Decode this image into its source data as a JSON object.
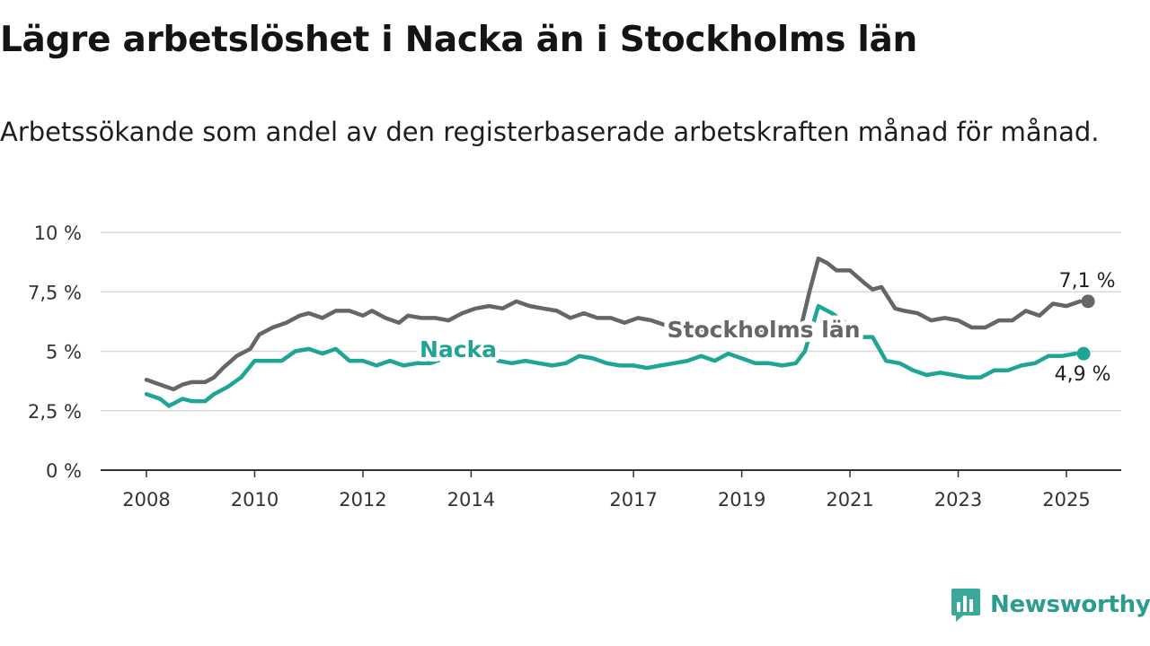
{
  "header": {
    "title": "Lägre arbetslöshet i Nacka än i Stockholms län",
    "subtitle": "Arbetssökande som andel av den registerbaserade arbetskraften månad för månad."
  },
  "brand": {
    "name": "Newsworthy",
    "icon": "chart-bars-icon",
    "color": "#3aa89a"
  },
  "chart_data": {
    "type": "line",
    "title": "Lägre arbetslöshet i Nacka än i Stockholms län",
    "subtitle": "Arbetssökande som andel av den registerbaserade arbetskraften månad för månad.",
    "x_ticks": [
      "2008",
      "2010",
      "2012",
      "2014",
      "2017",
      "2019",
      "2021",
      "2023",
      "2025"
    ],
    "y_ticks": [
      "0 %",
      "2,5 %",
      "5 %",
      "7,5 %",
      "10 %"
    ],
    "ylim": [
      0,
      10
    ],
    "grid": true,
    "series": [
      {
        "name": "Stockholms län",
        "color": "#666666",
        "end_label": "7,1 %",
        "points": [
          [
            "2008-01",
            3.8
          ],
          [
            "2008-04",
            3.6
          ],
          [
            "2008-07",
            3.4
          ],
          [
            "2008-09",
            3.6
          ],
          [
            "2008-11",
            3.7
          ],
          [
            "2009-02",
            3.7
          ],
          [
            "2009-04",
            3.9
          ],
          [
            "2009-06",
            4.3
          ],
          [
            "2009-09",
            4.8
          ],
          [
            "2009-12",
            5.1
          ],
          [
            "2010-02",
            5.7
          ],
          [
            "2010-05",
            6.0
          ],
          [
            "2010-08",
            6.2
          ],
          [
            "2010-11",
            6.5
          ],
          [
            "2011-01",
            6.6
          ],
          [
            "2011-04",
            6.4
          ],
          [
            "2011-07",
            6.7
          ],
          [
            "2011-10",
            6.7
          ],
          [
            "2012-01",
            6.5
          ],
          [
            "2012-03",
            6.7
          ],
          [
            "2012-06",
            6.4
          ],
          [
            "2012-09",
            6.2
          ],
          [
            "2012-11",
            6.5
          ],
          [
            "2013-02",
            6.4
          ],
          [
            "2013-05",
            6.4
          ],
          [
            "2013-08",
            6.3
          ],
          [
            "2013-11",
            6.6
          ],
          [
            "2014-02",
            6.8
          ],
          [
            "2014-05",
            6.9
          ],
          [
            "2014-08",
            6.8
          ],
          [
            "2014-11",
            7.1
          ],
          [
            "2015-02",
            6.9
          ],
          [
            "2015-05",
            6.8
          ],
          [
            "2015-08",
            6.7
          ],
          [
            "2015-11",
            6.4
          ],
          [
            "2016-02",
            6.6
          ],
          [
            "2016-05",
            6.4
          ],
          [
            "2016-08",
            6.4
          ],
          [
            "2016-11",
            6.2
          ],
          [
            "2017-02",
            6.4
          ],
          [
            "2017-05",
            6.3
          ],
          [
            "2017-08",
            6.1
          ],
          [
            "2017-11",
            6.1
          ],
          [
            "2018-02",
            6.0
          ],
          [
            "2018-05",
            5.9
          ],
          [
            "2018-08",
            6.0
          ],
          [
            "2018-11",
            5.9
          ],
          [
            "2019-02",
            5.9
          ],
          [
            "2019-05",
            5.9
          ],
          [
            "2019-08",
            5.9
          ],
          [
            "2019-11",
            5.8
          ],
          [
            "2020-02",
            5.9
          ],
          [
            "2020-04",
            7.5
          ],
          [
            "2020-06",
            8.9
          ],
          [
            "2020-08",
            8.7
          ],
          [
            "2020-10",
            8.4
          ],
          [
            "2021-01",
            8.4
          ],
          [
            "2021-04",
            7.9
          ],
          [
            "2021-06",
            7.6
          ],
          [
            "2021-08",
            7.7
          ],
          [
            "2021-11",
            6.8
          ],
          [
            "2022-01",
            6.7
          ],
          [
            "2022-04",
            6.6
          ],
          [
            "2022-07",
            6.3
          ],
          [
            "2022-10",
            6.4
          ],
          [
            "2023-01",
            6.3
          ],
          [
            "2023-04",
            6.0
          ],
          [
            "2023-07",
            6.0
          ],
          [
            "2023-10",
            6.3
          ],
          [
            "2024-01",
            6.3
          ],
          [
            "2024-04",
            6.7
          ],
          [
            "2024-07",
            6.5
          ],
          [
            "2024-10",
            7.0
          ],
          [
            "2025-01",
            6.9
          ],
          [
            "2025-04",
            7.1
          ]
        ]
      },
      {
        "name": "Nacka",
        "color": "#1fa595",
        "end_label": "4,9 %",
        "points": [
          [
            "2008-01",
            3.2
          ],
          [
            "2008-04",
            3.0
          ],
          [
            "2008-06",
            2.7
          ],
          [
            "2008-09",
            3.0
          ],
          [
            "2008-11",
            2.9
          ],
          [
            "2009-02",
            2.9
          ],
          [
            "2009-04",
            3.2
          ],
          [
            "2009-07",
            3.5
          ],
          [
            "2009-10",
            3.9
          ],
          [
            "2010-01",
            4.6
          ],
          [
            "2010-04",
            4.6
          ],
          [
            "2010-07",
            4.6
          ],
          [
            "2010-10",
            5.0
          ],
          [
            "2011-01",
            5.1
          ],
          [
            "2011-04",
            4.9
          ],
          [
            "2011-07",
            5.1
          ],
          [
            "2011-10",
            4.6
          ],
          [
            "2012-01",
            4.6
          ],
          [
            "2012-04",
            4.4
          ],
          [
            "2012-07",
            4.6
          ],
          [
            "2012-10",
            4.4
          ],
          [
            "2013-01",
            4.5
          ],
          [
            "2013-04",
            4.5
          ],
          [
            "2013-07",
            4.7
          ],
          [
            "2013-10",
            4.9
          ],
          [
            "2014-01",
            5.0
          ],
          [
            "2014-04",
            4.9
          ],
          [
            "2014-07",
            4.6
          ],
          [
            "2014-10",
            4.5
          ],
          [
            "2015-01",
            4.6
          ],
          [
            "2015-04",
            4.5
          ],
          [
            "2015-07",
            4.4
          ],
          [
            "2015-10",
            4.5
          ],
          [
            "2016-01",
            4.8
          ],
          [
            "2016-04",
            4.7
          ],
          [
            "2016-07",
            4.5
          ],
          [
            "2016-10",
            4.4
          ],
          [
            "2017-01",
            4.4
          ],
          [
            "2017-04",
            4.3
          ],
          [
            "2017-07",
            4.4
          ],
          [
            "2017-10",
            4.5
          ],
          [
            "2018-01",
            4.6
          ],
          [
            "2018-04",
            4.8
          ],
          [
            "2018-07",
            4.6
          ],
          [
            "2018-10",
            4.9
          ],
          [
            "2019-01",
            4.7
          ],
          [
            "2019-04",
            4.5
          ],
          [
            "2019-07",
            4.5
          ],
          [
            "2019-10",
            4.4
          ],
          [
            "2020-01",
            4.5
          ],
          [
            "2020-03",
            5.0
          ],
          [
            "2020-06",
            6.9
          ],
          [
            "2020-09",
            6.6
          ],
          [
            "2020-12",
            6.2
          ],
          [
            "2021-03",
            5.6
          ],
          [
            "2021-06",
            5.6
          ],
          [
            "2021-09",
            4.6
          ],
          [
            "2021-12",
            4.5
          ],
          [
            "2022-03",
            4.2
          ],
          [
            "2022-06",
            4.0
          ],
          [
            "2022-09",
            4.1
          ],
          [
            "2022-12",
            4.0
          ],
          [
            "2023-03",
            3.9
          ],
          [
            "2023-06",
            3.9
          ],
          [
            "2023-09",
            4.2
          ],
          [
            "2023-12",
            4.2
          ],
          [
            "2024-03",
            4.4
          ],
          [
            "2024-06",
            4.5
          ],
          [
            "2024-09",
            4.8
          ],
          [
            "2024-12",
            4.8
          ],
          [
            "2025-03",
            4.9
          ]
        ]
      }
    ]
  }
}
